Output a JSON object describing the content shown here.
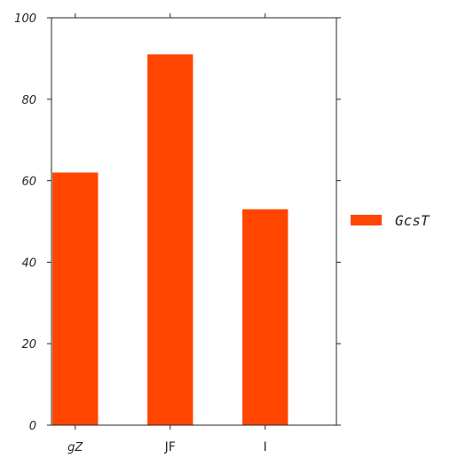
{
  "chart_data": {
    "type": "bar",
    "categories": [
      "gZ",
      "JF",
      "I"
    ],
    "category_italic": [
      true,
      false,
      false
    ],
    "series": [
      {
        "name": "GcsT",
        "values": [
          62,
          91,
          53
        ],
        "color": "#ff4500"
      }
    ],
    "title": "",
    "xlabel": "",
    "ylabel": "",
    "ylim": [
      0,
      100
    ],
    "yticks": [
      0,
      20,
      40,
      60,
      80,
      100
    ],
    "grid": false,
    "legend_position": "right"
  }
}
